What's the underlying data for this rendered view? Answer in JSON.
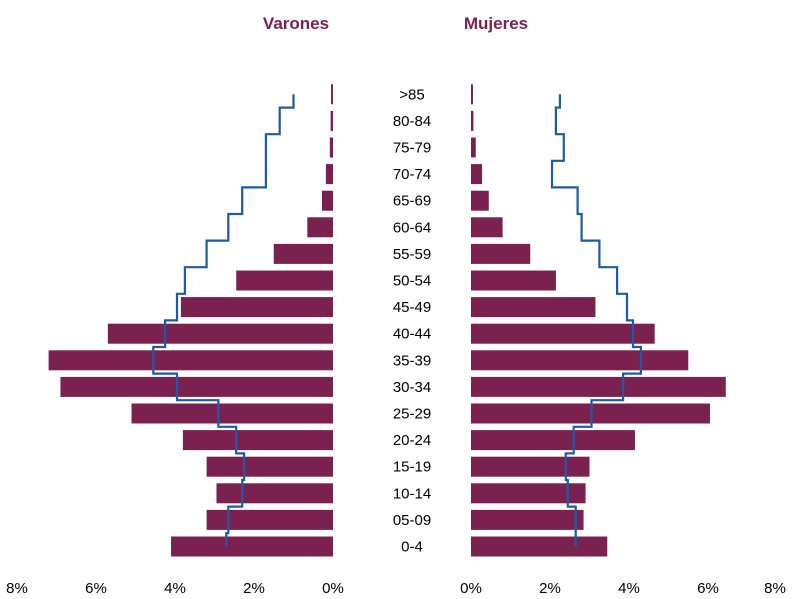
{
  "chart_data": {
    "type": "bar",
    "subtype": "population-pyramid",
    "titles": {
      "left": "Varones",
      "right": "Mujeres"
    },
    "categories": [
      ">85",
      "80-84",
      "75-79",
      "70-74",
      "65-69",
      "60-64",
      "55-59",
      "50-54",
      "45-49",
      "40-44",
      "35-39",
      "30-34",
      "25-29",
      "20-24",
      "15-19",
      "10-14",
      "05-09",
      "0-4"
    ],
    "x_ticks_left": [
      "8%",
      "6%",
      "4%",
      "2%",
      "0%"
    ],
    "x_ticks_right": [
      "0%",
      "2%",
      "4%",
      "6%",
      "8%"
    ],
    "xlim": [
      0,
      8
    ],
    "grid": false,
    "series": [
      {
        "side": "left",
        "kind": "bars",
        "values": [
          0.05,
          0.06,
          0.08,
          0.18,
          0.28,
          0.65,
          1.5,
          2.45,
          3.85,
          5.7,
          7.2,
          6.9,
          5.1,
          3.8,
          3.2,
          2.95,
          3.2,
          4.1
        ]
      },
      {
        "side": "left",
        "kind": "step-line",
        "values": [
          1.0,
          1.35,
          1.7,
          1.7,
          2.3,
          2.65,
          3.2,
          3.75,
          3.95,
          4.25,
          4.55,
          3.95,
          2.9,
          2.45,
          2.25,
          2.3,
          2.65,
          2.7
        ]
      },
      {
        "side": "right",
        "kind": "bars",
        "values": [
          0.05,
          0.06,
          0.12,
          0.28,
          0.45,
          0.8,
          1.5,
          2.15,
          3.15,
          4.65,
          5.5,
          6.45,
          6.05,
          4.15,
          3.0,
          2.9,
          2.85,
          3.45
        ]
      },
      {
        "side": "right",
        "kind": "step-line",
        "values": [
          2.25,
          2.15,
          2.35,
          2.05,
          2.7,
          2.8,
          3.25,
          3.7,
          3.95,
          4.1,
          4.3,
          3.85,
          3.05,
          2.6,
          2.4,
          2.45,
          2.65,
          2.65
        ]
      }
    ]
  },
  "colors": {
    "bar": "#7b2150",
    "line": "#1f5aa6",
    "title": "#7b2150"
  }
}
